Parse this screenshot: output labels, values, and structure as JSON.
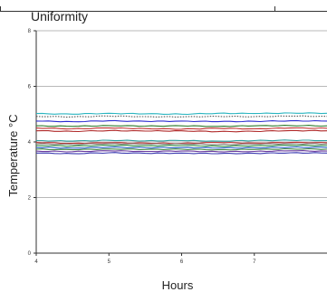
{
  "chart_data": {
    "type": "line",
    "title": "Uniformity",
    "xlabel": "Hours",
    "ylabel": "Temperature °C",
    "xlim": [
      4,
      8
    ],
    "ylim": [
      0,
      8
    ],
    "xticks": [
      4,
      5,
      6,
      7
    ],
    "yticks": [
      0,
      2,
      4,
      6,
      8
    ],
    "grid": true,
    "legend": "none",
    "x": [
      4.0,
      4.5,
      5.0,
      5.5,
      6.0,
      6.5,
      7.0,
      7.5,
      8.0
    ],
    "series": [
      {
        "color": "#2bb5c0",
        "values": [
          5.02,
          5.0,
          5.03,
          5.01,
          5.0,
          5.03,
          5.02,
          5.04,
          5.03
        ]
      },
      {
        "color": "#555555",
        "values": [
          4.92,
          4.9,
          4.93,
          4.91,
          4.9,
          4.92,
          4.91,
          4.93,
          4.92
        ]
      },
      {
        "color": "#2a2ad0",
        "values": [
          4.75,
          4.73,
          4.76,
          4.74,
          4.75,
          4.73,
          4.74,
          4.76,
          4.75
        ]
      },
      {
        "color": "#2d7a2d",
        "values": [
          4.58,
          4.56,
          4.59,
          4.57,
          4.58,
          4.56,
          4.58,
          4.59,
          4.58
        ]
      },
      {
        "color": "#c03030",
        "values": [
          4.5,
          4.47,
          4.5,
          4.48,
          4.46,
          4.49,
          4.47,
          4.5,
          4.49
        ]
      },
      {
        "color": "#b02828",
        "values": [
          4.4,
          4.38,
          4.41,
          4.39,
          4.4,
          4.37,
          4.38,
          4.41,
          4.4
        ]
      },
      {
        "color": "#30a0a0",
        "values": [
          4.05,
          4.03,
          4.06,
          4.04,
          4.05,
          4.03,
          4.05,
          4.06,
          4.05
        ]
      },
      {
        "color": "#c03838",
        "values": [
          3.98,
          3.95,
          3.97,
          3.96,
          3.95,
          3.98,
          3.96,
          3.98,
          3.97
        ]
      },
      {
        "color": "#888888",
        "values": [
          3.93,
          3.91,
          3.94,
          3.92,
          3.93,
          3.91,
          3.92,
          3.94,
          3.93
        ]
      },
      {
        "color": "#2d8a3d",
        "values": [
          3.87,
          3.85,
          3.88,
          3.86,
          3.87,
          3.85,
          3.86,
          3.88,
          3.87
        ]
      },
      {
        "color": "#3366cc",
        "values": [
          3.8,
          3.78,
          3.81,
          3.79,
          3.8,
          3.78,
          3.79,
          3.81,
          3.8
        ]
      },
      {
        "color": "#4a8a4a",
        "values": [
          3.74,
          3.72,
          3.75,
          3.73,
          3.74,
          3.72,
          3.73,
          3.75,
          3.74
        ]
      },
      {
        "color": "#6a3aa0",
        "values": [
          3.67,
          3.65,
          3.68,
          3.66,
          3.67,
          3.65,
          3.66,
          3.68,
          3.67
        ]
      },
      {
        "color": "#3a3ab0",
        "values": [
          3.6,
          3.58,
          3.61,
          3.59,
          3.6,
          3.58,
          3.59,
          3.61,
          3.6
        ]
      }
    ]
  }
}
